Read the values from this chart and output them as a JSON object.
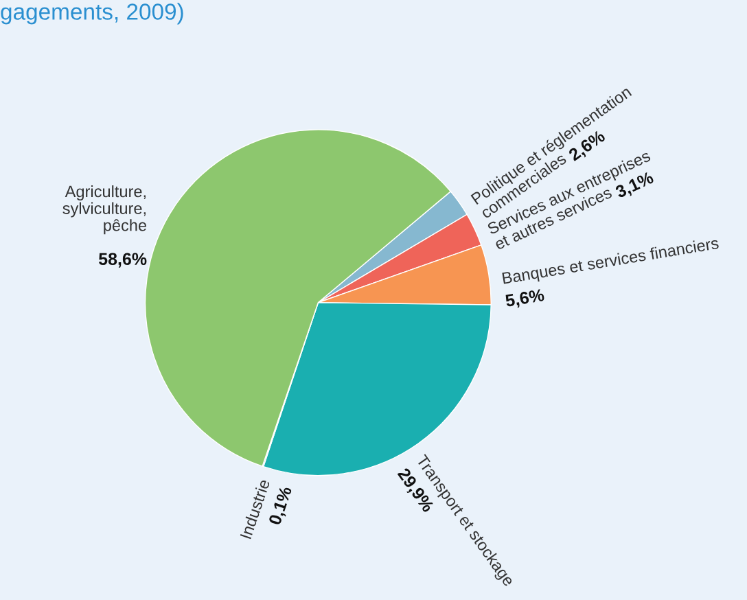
{
  "chart_data": {
    "type": "pie",
    "title": "gagements, 2009)",
    "categories": [
      "Politique et réglementation\ncommerciales",
      "Services aux entreprises\net autres services",
      "Banques et services financiers",
      "Transport et stockage",
      "Industrie",
      "Agriculture,\nsylviculture,\npêche"
    ],
    "values": [
      2.6,
      3.1,
      5.6,
      29.9,
      0.1,
      58.6
    ],
    "value_labels": [
      "2,6%",
      "3,1%",
      "5,6%",
      "29,9%",
      "0,1%",
      "58,6%"
    ],
    "colors": [
      "#86b8d0",
      "#ef6459",
      "#f79552",
      "#1aafb0",
      "#2a7fc0",
      "#8dc76e"
    ]
  }
}
